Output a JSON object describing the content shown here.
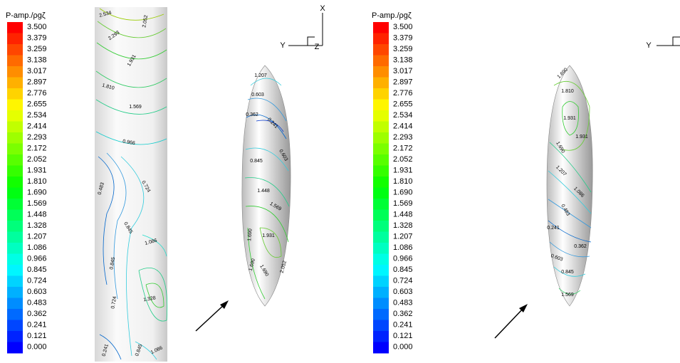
{
  "panels": [
    {
      "legend": {
        "title": "P-amp./ρgζ",
        "levels": [
          "3.500",
          "3.379",
          "3.259",
          "3.138",
          "3.017",
          "2.897",
          "2.776",
          "2.655",
          "2.534",
          "2.414",
          "2.293",
          "2.172",
          "2.052",
          "1.931",
          "1.810",
          "1.690",
          "1.569",
          "1.448",
          "1.328",
          "1.207",
          "1.086",
          "0.966",
          "0.845",
          "0.724",
          "0.603",
          "0.483",
          "0.362",
          "0.241",
          "0.121",
          "0.000"
        ]
      },
      "axes": {
        "x": "X",
        "y": "Y",
        "z": "Z"
      },
      "strip_labels": [
        "2.534",
        "2.052",
        "2.293",
        "1.931",
        "1.810",
        "1.569",
        "0.966",
        "0.483",
        "0.724",
        "0.845",
        "1.086",
        "0.845",
        "1.328",
        "0.724",
        "0.241",
        "0.845",
        "1.086"
      ],
      "hull_labels": [
        "1.207",
        "0.603",
        "0.362",
        "0.241",
        "0.603",
        "0.845",
        "1.448",
        "1.569",
        "1.931",
        "1.690",
        "1.690",
        "1.690",
        "2.052"
      ]
    },
    {
      "legend": {
        "title": "P-amp./ρgζ",
        "levels": [
          "3.500",
          "3.379",
          "3.259",
          "3.138",
          "3.017",
          "2.897",
          "2.776",
          "2.655",
          "2.534",
          "2.414",
          "2.293",
          "2.172",
          "2.052",
          "1.931",
          "1.810",
          "1.690",
          "1.569",
          "1.448",
          "1.328",
          "1.207",
          "1.086",
          "0.966",
          "0.845",
          "0.724",
          "0.603",
          "0.483",
          "0.362",
          "0.241",
          "0.121",
          "0.000"
        ]
      },
      "axes": {
        "y": "Y"
      },
      "hull_labels": [
        "1.690",
        "1.810",
        "1.931",
        "1.931",
        "1.690",
        "1.207",
        "1.086",
        "0.483",
        "0.241",
        "0.362",
        "0.603",
        "0.845",
        "1.569"
      ]
    }
  ]
}
